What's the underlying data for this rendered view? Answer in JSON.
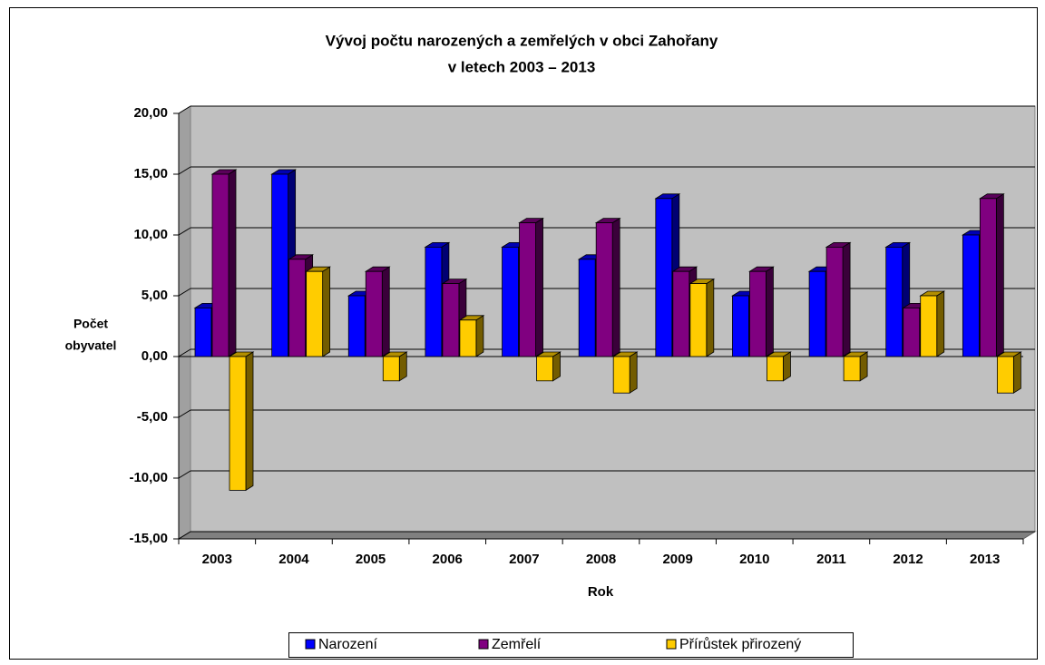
{
  "chart_data": {
    "type": "bar3d",
    "title": [
      "Vývoj počtu narozených a zemřelých v obci Zahořany",
      "v letech 2003 – 2013"
    ],
    "x_label": "Rok",
    "y_label": [
      "Počet",
      "obyvatel"
    ],
    "categories": [
      "2003",
      "2004",
      "2005",
      "2006",
      "2007",
      "2008",
      "2009",
      "2010",
      "2011",
      "2012",
      "2013"
    ],
    "series": [
      {
        "name": "Narození",
        "color": "#0000ff",
        "values": [
          4,
          15,
          5,
          9,
          9,
          8,
          13,
          5,
          7,
          9,
          10
        ]
      },
      {
        "name": "Zemřelí",
        "color": "#800080",
        "values": [
          15,
          8,
          7,
          6,
          11,
          11,
          7,
          7,
          9,
          4,
          13
        ]
      },
      {
        "name": "Přírůstek přirozený",
        "color": "#ffcc00",
        "values": [
          -11,
          7,
          -2,
          3,
          -2,
          -3,
          6,
          -2,
          -2,
          5,
          -3
        ]
      }
    ],
    "ylim": [
      -15,
      20
    ],
    "yticks": [
      {
        "value": -15,
        "label": "-15,00"
      },
      {
        "value": -10,
        "label": "-10,00"
      },
      {
        "value": -5,
        "label": "-5,00"
      },
      {
        "value": 0,
        "label": "0,00"
      },
      {
        "value": 5,
        "label": "5,00"
      },
      {
        "value": 10,
        "label": "10,00"
      },
      {
        "value": 15,
        "label": "15,00"
      },
      {
        "value": 20,
        "label": "20,00"
      }
    ],
    "grid": true,
    "legend": "bottom"
  }
}
